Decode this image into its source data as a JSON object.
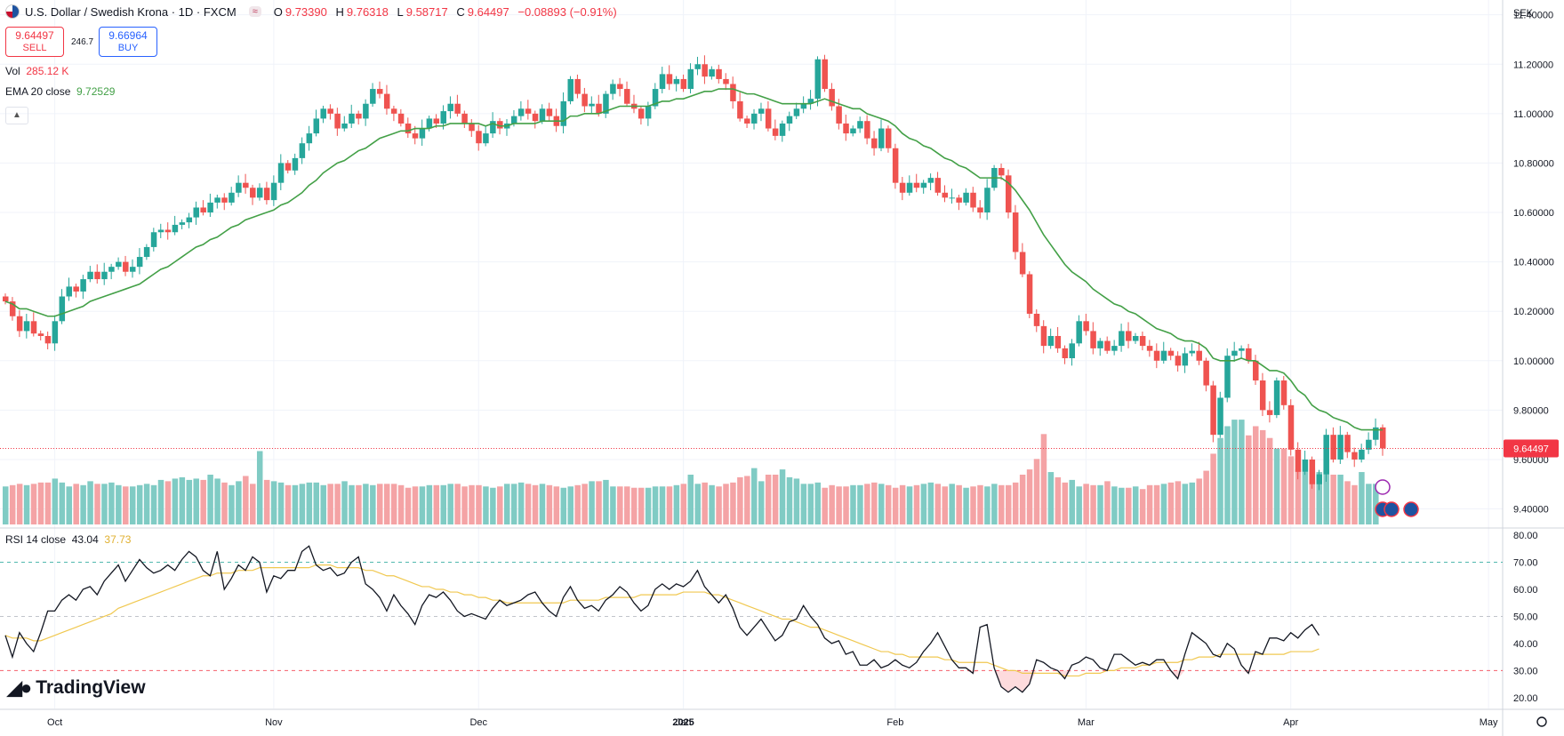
{
  "header": {
    "title": "U.S. Dollar / Swedish Krona · 1D · FXCM",
    "open_label": "O",
    "open": "9.73390",
    "high_label": "H",
    "high": "9.76318",
    "low_label": "L",
    "low": "9.58717",
    "close_label": "C",
    "close": "9.64497",
    "change": "−0.08893 (−0.91%)"
  },
  "trade": {
    "sell_price": "9.64497",
    "sell_label": "SELL",
    "spread": "246.7",
    "buy_price": "9.66964",
    "buy_label": "BUY"
  },
  "indicators": {
    "vol_label": "Vol",
    "vol_value": "285.12 K",
    "ema_label": "EMA 20 close",
    "ema_value": "9.72529",
    "rsi_label": "RSI 14 close",
    "rsi_value": "43.04",
    "rsi_ma_value": "37.73"
  },
  "branding": {
    "logo_text": "TradingView"
  },
  "colors": {
    "up": "#26a69a",
    "down": "#ef5350",
    "ema": "#43a047",
    "rsi": "#131722",
    "rsi_ma": "#f0c850",
    "vol_up": "#80cbc4",
    "vol_down": "#f4a3a5"
  },
  "chart_data": {
    "type": "candlestick",
    "currency_label": "SEK",
    "last_price_label": "9.64497",
    "last_price": 9.64497,
    "price_axis": {
      "ticks": [
        "11.40000",
        "11.20000",
        "11.00000",
        "10.80000",
        "10.60000",
        "10.40000",
        "10.20000",
        "10.00000",
        "9.80000",
        "9.60000",
        "9.40000"
      ],
      "range": [
        9.33,
        11.46
      ]
    },
    "rsi_axis": {
      "ticks": [
        "80.00",
        "70.00",
        "60.00",
        "50.00",
        "40.00",
        "30.00",
        "20.00"
      ],
      "range": [
        16,
        82
      ],
      "levels": [
        70,
        50,
        30
      ]
    },
    "time_axis": {
      "labels": [
        "Oct",
        "Nov",
        "Dec",
        "2025",
        "Jan",
        "Feb",
        "Mar",
        "Apr",
        "May"
      ]
    },
    "label_index": [
      7,
      38,
      67,
      96,
      96,
      126,
      153,
      182,
      210
    ],
    "closes": [
      10.24,
      10.18,
      10.12,
      10.16,
      10.11,
      10.1,
      10.07,
      10.16,
      10.26,
      10.3,
      10.28,
      10.33,
      10.36,
      10.33,
      10.36,
      10.38,
      10.4,
      10.36,
      10.38,
      10.42,
      10.46,
      10.52,
      10.53,
      10.52,
      10.55,
      10.56,
      10.58,
      10.62,
      10.6,
      10.64,
      10.66,
      10.64,
      10.68,
      10.72,
      10.7,
      10.66,
      10.7,
      10.65,
      10.72,
      10.8,
      10.77,
      10.82,
      10.88,
      10.92,
      10.98,
      11.02,
      11.0,
      10.94,
      10.96,
      11.0,
      10.98,
      11.04,
      11.1,
      11.08,
      11.02,
      11.0,
      10.96,
      10.92,
      10.9,
      10.94,
      10.98,
      10.96,
      11.01,
      11.04,
      11.0,
      10.96,
      10.93,
      10.88,
      10.92,
      10.97,
      10.94,
      10.96,
      10.99,
      11.02,
      11.0,
      10.97,
      11.02,
      10.99,
      10.95,
      11.05,
      11.14,
      11.08,
      11.03,
      11.04,
      11.0,
      11.08,
      11.12,
      11.1,
      11.04,
      11.02,
      10.98,
      11.03,
      11.1,
      11.16,
      11.12,
      11.14,
      11.1,
      11.18,
      11.2,
      11.15,
      11.18,
      11.14,
      11.12,
      11.05,
      10.98,
      10.96,
      11.0,
      11.02,
      10.94,
      10.91,
      10.96,
      10.99,
      11.02,
      11.04,
      11.06,
      11.22,
      11.1,
      11.03,
      10.96,
      10.92,
      10.94,
      10.97,
      10.9,
      10.86,
      10.94,
      10.86,
      10.72,
      10.68,
      10.72,
      10.7,
      10.72,
      10.74,
      10.68,
      10.66,
      10.66,
      10.64,
      10.68,
      10.62,
      10.6,
      10.7,
      10.78,
      10.75,
      10.6,
      10.44,
      10.35,
      10.19,
      10.14,
      10.06,
      10.1,
      10.05,
      10.01,
      10.07,
      10.16,
      10.12,
      10.05,
      10.08,
      10.04,
      10.06,
      10.12,
      10.08,
      10.1,
      10.06,
      10.04,
      10.0,
      10.04,
      10.02,
      9.98,
      10.03,
      10.04,
      10.0,
      9.9,
      9.7,
      9.85,
      10.02,
      10.04,
      10.05,
      10.0,
      9.92,
      9.8,
      9.78,
      9.92,
      9.82,
      9.64,
      9.55,
      9.6,
      9.5,
      9.54,
      9.7,
      9.6,
      9.7,
      9.63,
      9.6,
      9.64,
      9.68,
      9.73,
      9.64497
    ],
    "volume": [
      29,
      30,
      31,
      30,
      31,
      32,
      32,
      35,
      32,
      29,
      31,
      30,
      33,
      31,
      31,
      32,
      30,
      29,
      29,
      30,
      31,
      30,
      34,
      33,
      35,
      36,
      34,
      35,
      34,
      38,
      35,
      32,
      30,
      33,
      37,
      31,
      56,
      34,
      33,
      32,
      30,
      30,
      31,
      32,
      32,
      30,
      31,
      31,
      33,
      30,
      30,
      31,
      30,
      31,
      31,
      31,
      30,
      28,
      29,
      29,
      30,
      30,
      30,
      31,
      31,
      29,
      30,
      30,
      29,
      28,
      29,
      31,
      31,
      32,
      31,
      30,
      31,
      30,
      29,
      28,
      29,
      30,
      31,
      33,
      33,
      34,
      29,
      29,
      29,
      28,
      28,
      28,
      29,
      29,
      29,
      30,
      31,
      38,
      31,
      32,
      30,
      29,
      31,
      32,
      36,
      37,
      43,
      33,
      38,
      38,
      42,
      36,
      35,
      31,
      31,
      32,
      28,
      30,
      29,
      29,
      30,
      30,
      31,
      32,
      31,
      30,
      28,
      30,
      29,
      30,
      31,
      32,
      31,
      29,
      31,
      30,
      28,
      29,
      30,
      29,
      31,
      30,
      30,
      32,
      38,
      42,
      50,
      69,
      40,
      36,
      32,
      34,
      29,
      31,
      30,
      30,
      33,
      29,
      28,
      28,
      29,
      27,
      30,
      30,
      31,
      32,
      33,
      31,
      32,
      35,
      41,
      54,
      66,
      75,
      80,
      80,
      68,
      75,
      72,
      66,
      58,
      58,
      52,
      42,
      40,
      43,
      40,
      42,
      38,
      38,
      33,
      30,
      40,
      31,
      31
    ],
    "ema": [
      10.24,
      10.23,
      10.21,
      10.21,
      10.2,
      10.19,
      10.18,
      10.18,
      10.19,
      10.2,
      10.21,
      10.22,
      10.24,
      10.25,
      10.26,
      10.27,
      10.28,
      10.29,
      10.3,
      10.31,
      10.33,
      10.35,
      10.37,
      10.38,
      10.4,
      10.42,
      10.44,
      10.46,
      10.47,
      10.49,
      10.5,
      10.52,
      10.54,
      10.55,
      10.57,
      10.58,
      10.59,
      10.6,
      10.61,
      10.63,
      10.64,
      10.66,
      10.68,
      10.71,
      10.73,
      10.76,
      10.78,
      10.8,
      10.81,
      10.83,
      10.85,
      10.86,
      10.88,
      10.9,
      10.91,
      10.92,
      10.93,
      10.93,
      10.94,
      10.94,
      10.94,
      10.95,
      10.95,
      10.96,
      10.96,
      10.96,
      10.96,
      10.96,
      10.95,
      10.96,
      10.95,
      10.95,
      10.96,
      10.96,
      10.96,
      10.96,
      10.97,
      10.97,
      10.97,
      10.97,
      10.99,
      10.99,
      11.0,
      11.0,
      11.0,
      11.01,
      11.02,
      11.03,
      11.03,
      11.03,
      11.03,
      11.03,
      11.04,
      11.05,
      11.05,
      11.06,
      11.06,
      11.07,
      11.08,
      11.09,
      11.09,
      11.1,
      11.1,
      11.1,
      11.09,
      11.08,
      11.08,
      11.07,
      11.06,
      11.05,
      11.04,
      11.04,
      11.04,
      11.04,
      11.04,
      11.05,
      11.06,
      11.05,
      11.04,
      11.03,
      11.02,
      11.02,
      11.0,
      10.99,
      10.98,
      10.97,
      10.95,
      10.92,
      10.9,
      10.89,
      10.87,
      10.86,
      10.84,
      10.82,
      10.81,
      10.79,
      10.78,
      10.76,
      10.74,
      10.74,
      10.74,
      10.74,
      10.72,
      10.69,
      10.65,
      10.61,
      10.56,
      10.51,
      10.47,
      10.43,
      10.39,
      10.36,
      10.34,
      10.32,
      10.29,
      10.27,
      10.25,
      10.23,
      10.22,
      10.2,
      10.19,
      10.17,
      10.15,
      10.13,
      10.12,
      10.11,
      10.09,
      10.08,
      10.08,
      10.07,
      10.05,
      10.01,
      10.0,
      10.0,
      10.0,
      10.01,
      10.0,
      10.0,
      9.98,
      9.96,
      9.96,
      9.95,
      9.92,
      9.88,
      9.86,
      9.82,
      9.8,
      9.79,
      9.77,
      9.76,
      9.75,
      9.73,
      9.72,
      9.72,
      9.72,
      9.72
    ],
    "rsi": [
      43,
      35,
      44,
      40,
      37,
      44,
      52,
      52,
      56,
      58,
      56,
      60,
      61,
      58,
      63,
      66,
      69,
      63,
      67,
      71,
      68,
      66,
      67,
      69,
      67,
      71,
      74,
      72,
      67,
      65,
      74,
      60,
      64,
      69,
      67,
      72,
      70,
      59,
      65,
      64,
      67,
      67,
      74,
      76,
      69,
      67,
      68,
      65,
      66,
      70,
      72,
      62,
      60,
      57,
      52,
      58,
      54,
      51,
      47,
      54,
      58,
      57,
      59,
      56,
      52,
      50,
      51,
      50,
      49,
      53,
      56,
      54,
      55,
      56,
      58,
      59,
      55,
      52,
      50,
      57,
      61,
      56,
      53,
      54,
      52,
      56,
      58,
      61,
      59,
      55,
      52,
      54,
      60,
      62,
      60,
      62,
      61,
      63,
      67,
      61,
      58,
      55,
      58,
      53,
      46,
      43,
      46,
      49,
      45,
      41,
      43,
      48,
      49,
      54,
      50,
      47,
      42,
      40,
      41,
      36,
      37,
      32,
      32,
      34,
      31,
      32,
      34,
      32,
      31,
      33,
      37,
      40,
      44,
      39,
      34,
      31,
      31,
      29,
      46,
      47,
      31,
      24,
      22,
      24,
      22,
      25,
      34,
      33,
      31,
      30,
      27,
      32,
      33,
      35,
      34,
      31,
      30,
      36,
      36,
      34,
      32,
      33,
      32,
      34,
      34,
      30,
      27,
      36,
      44,
      42,
      40,
      36,
      35,
      40,
      38,
      32,
      29,
      37,
      36,
      42,
      42,
      41,
      44,
      42,
      45,
      47,
      43
    ],
    "rsi_ma": [
      43,
      42,
      42,
      42,
      41,
      41,
      42,
      43,
      44,
      45,
      46,
      47,
      48,
      49,
      50,
      51,
      53,
      54,
      55,
      56,
      57,
      58,
      59,
      60,
      61,
      62,
      63,
      64,
      65,
      65,
      66,
      66,
      66,
      67,
      67,
      67,
      68,
      68,
      68,
      68,
      68,
      68,
      68,
      68,
      69,
      69,
      69,
      68,
      68,
      68,
      68,
      67,
      67,
      66,
      65,
      65,
      64,
      63,
      62,
      61,
      61,
      60,
      60,
      59,
      59,
      58,
      58,
      57,
      57,
      56,
      56,
      55,
      55,
      55,
      55,
      55,
      55,
      55,
      55,
      55,
      56,
      56,
      56,
      56,
      56,
      57,
      57,
      57,
      57,
      57,
      58,
      58,
      58,
      58,
      58,
      58,
      59,
      59,
      59,
      59,
      58,
      58,
      57,
      56,
      55,
      54,
      53,
      52,
      51,
      50,
      49,
      49,
      48,
      47,
      46,
      46,
      45,
      44,
      43,
      42,
      41,
      40,
      39,
      38,
      37,
      37,
      36,
      36,
      35,
      35,
      35,
      35,
      35,
      34,
      34,
      33,
      33,
      33,
      33,
      33,
      32,
      31,
      30,
      30,
      29,
      29,
      29,
      29,
      29,
      29,
      28,
      28,
      28,
      29,
      29,
      29,
      30,
      30,
      31,
      31,
      31,
      32,
      32,
      33,
      33,
      33,
      33,
      34,
      34,
      35,
      35,
      35,
      36,
      36,
      36,
      36,
      36,
      36,
      36,
      36,
      36,
      36,
      37,
      37,
      37,
      37,
      38
    ]
  }
}
